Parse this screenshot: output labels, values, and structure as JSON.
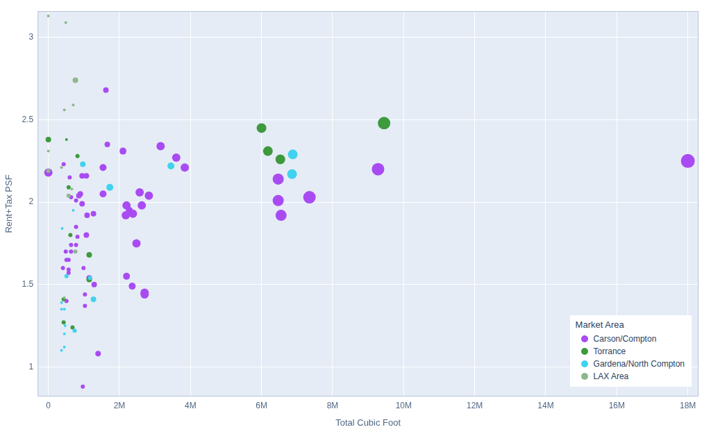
{
  "chart_data": {
    "type": "bubble",
    "x_label": "Total Cubic Foot",
    "y_label": "Rent+Tax PSF",
    "legend_title": "Market Area",
    "legend": "lower right",
    "grid": true,
    "xlim": [
      -300000,
      18300000
    ],
    "ylim": [
      0.82,
      3.16
    ],
    "xticks": [
      0,
      {
        "value": 2000000,
        "label": "2M"
      },
      {
        "value": 4000000,
        "label": "4M"
      },
      {
        "value": 6000000,
        "label": "6M"
      },
      {
        "value": 8000000,
        "label": "8M"
      },
      {
        "value": 10000000,
        "label": "10M"
      },
      {
        "value": 12000000,
        "label": "12M"
      },
      {
        "value": 14000000,
        "label": "14M"
      },
      {
        "value": 16000000,
        "label": "16M"
      },
      {
        "value": 18000000,
        "label": "18M"
      }
    ],
    "yticks": [
      1,
      1.5,
      2,
      2.5,
      3
    ],
    "series": [
      {
        "name": "Carson/Compton",
        "color": "#a94bf2",
        "x": [
          0,
          1620000,
          1660000,
          2100000,
          3160000,
          3600000,
          3840000,
          1540000,
          950000,
          1070000,
          430000,
          600000,
          900000,
          860000,
          640000,
          780000,
          950000,
          1540000,
          2570000,
          2830000,
          2200000,
          2630000,
          2280000,
          2380000,
          2180000,
          1270000,
          1090000,
          780000,
          1070000,
          820000,
          2480000,
          780000,
          640000,
          490000,
          640000,
          510000,
          570000,
          990000,
          570000,
          570000,
          410000,
          2200000,
          1150000,
          1290000,
          2360000,
          2710000,
          2710000,
          1030000,
          510000,
          1030000,
          1400000,
          970000,
          6470000,
          6470000,
          6550000,
          7350000,
          9280000,
          18000000
        ],
        "values": [
          2.18,
          2.68,
          2.35,
          2.31,
          2.34,
          2.27,
          2.21,
          2.21,
          2.16,
          2.16,
          2.23,
          2.15,
          2.05,
          2.04,
          2.03,
          2.01,
          1.99,
          2.05,
          2.06,
          2.04,
          1.98,
          1.98,
          1.95,
          1.93,
          1.92,
          1.93,
          1.92,
          1.85,
          1.8,
          1.79,
          1.75,
          1.74,
          1.74,
          1.7,
          1.7,
          1.65,
          1.65,
          1.6,
          1.59,
          1.57,
          1.6,
          1.55,
          1.54,
          1.5,
          1.49,
          1.45,
          1.44,
          1.44,
          1.4,
          1.37,
          1.08,
          0.88,
          2.14,
          2.01,
          1.92,
          2.03,
          2.2,
          2.25
        ],
        "sizes": [
          6,
          4,
          4,
          5,
          6,
          6,
          6,
          5,
          4,
          4,
          3,
          3,
          4,
          4,
          3,
          3,
          4,
          5,
          6,
          6,
          6,
          6,
          5,
          6,
          6,
          4,
          4,
          3,
          4,
          3,
          6,
          3,
          3,
          3,
          3,
          3,
          3,
          3,
          3,
          3,
          3,
          5,
          4,
          4,
          5,
          6,
          6,
          3,
          3,
          3,
          4,
          3,
          8,
          8,
          8,
          9,
          9,
          10
        ]
      },
      {
        "name": "Torrance",
        "color": "#3d9a3d",
        "x": [
          0,
          510000,
          820000,
          570000,
          620000,
          1150000,
          1150000,
          430000,
          430000,
          680000,
          6000000,
          6180000,
          6530000,
          9450000
        ],
        "values": [
          2.38,
          2.38,
          2.28,
          2.09,
          1.8,
          1.68,
          1.53,
          1.41,
          1.27,
          1.24,
          2.45,
          2.31,
          2.26,
          2.48
        ],
        "sizes": [
          4,
          2,
          3,
          3,
          3,
          4,
          4,
          3,
          3,
          3,
          7,
          7,
          7,
          9
        ]
      },
      {
        "name": "Gardena/North Compton",
        "color": "#40d2ee",
        "x": [
          970000,
          1730000,
          3450000,
          6880000,
          6860000,
          700000,
          390000,
          510000,
          1170000,
          1270000,
          370000,
          370000,
          450000,
          470000,
          740000,
          450000,
          450000,
          370000
        ],
        "values": [
          2.23,
          2.09,
          2.22,
          2.29,
          2.17,
          1.95,
          1.84,
          1.55,
          1.54,
          1.41,
          1.39,
          1.35,
          1.35,
          1.25,
          1.22,
          1.2,
          1.12,
          1.1
        ],
        "sizes": [
          4,
          5,
          5,
          7,
          7,
          2,
          2,
          3,
          3,
          4,
          2,
          2,
          2,
          2,
          3,
          2,
          2,
          2
        ]
      },
      {
        "name": "LAX Area",
        "color": "#8db88d",
        "x": [
          0,
          490000,
          760000,
          700000,
          450000,
          0,
          0,
          370000,
          570000,
          660000,
          760000,
          450000
        ],
        "values": [
          3.13,
          3.09,
          2.74,
          2.59,
          2.56,
          2.31,
          2.19,
          2.21,
          2.04,
          2.08,
          1.7,
          1.42
        ],
        "sizes": [
          2,
          2,
          4,
          2,
          2,
          2,
          3,
          2,
          3,
          2,
          3,
          2
        ]
      }
    ]
  }
}
